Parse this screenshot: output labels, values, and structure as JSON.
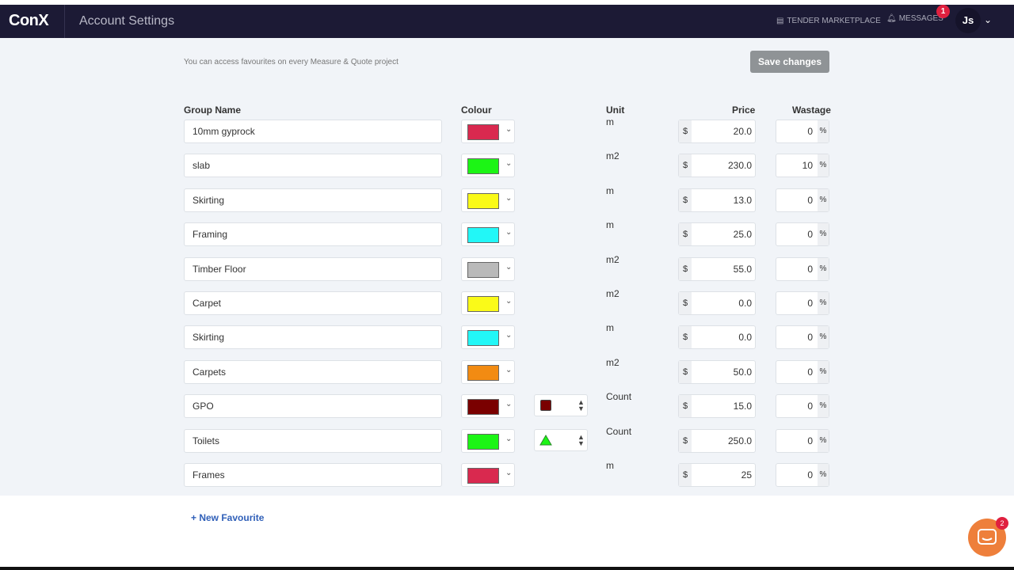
{
  "header": {
    "logo": "ConX",
    "title": "Account Settings",
    "tender": "TENDER MARKETPLACE",
    "messages": "MESSAGES",
    "messages_count": "1",
    "avatar": "Js"
  },
  "main": {
    "hint": "You can access favourites on every Measure & Quote project",
    "save_label": "Save changes",
    "columns": {
      "group": "Group Name",
      "colour": "Colour",
      "unit": "Unit",
      "price": "Price",
      "wastage": "Wastage"
    },
    "rows": [
      {
        "name": "10mm gyprock",
        "colour": "#d9294f",
        "unit": "m",
        "currency": "$",
        "price": "20.0",
        "wastage": "0",
        "pct": "%"
      },
      {
        "name": "slab",
        "colour": "#1cf515",
        "unit": "m2",
        "currency": "$",
        "price": "230.0",
        "wastage": "10",
        "pct": "%"
      },
      {
        "name": "Skirting",
        "colour": "#fafa18",
        "unit": "m",
        "currency": "$",
        "price": "13.0",
        "wastage": "0",
        "pct": "%"
      },
      {
        "name": "Framing",
        "colour": "#22f7f7",
        "unit": "m",
        "currency": "$",
        "price": "25.0",
        "wastage": "0",
        "pct": "%"
      },
      {
        "name": "Timber Floor",
        "colour": "#b9b9b9",
        "unit": "m2",
        "currency": "$",
        "price": "55.0",
        "wastage": "0",
        "pct": "%"
      },
      {
        "name": "Carpet",
        "colour": "#fafa18",
        "unit": "m2",
        "currency": "$",
        "price": "0.0",
        "wastage": "0",
        "pct": "%"
      },
      {
        "name": "Skirting",
        "colour": "#22f7f7",
        "unit": "m",
        "currency": "$",
        "price": "0.0",
        "wastage": "0",
        "pct": "%"
      },
      {
        "name": "Carpets",
        "colour": "#f28b12",
        "unit": "m2",
        "currency": "$",
        "price": "50.0",
        "wastage": "0",
        "pct": "%"
      },
      {
        "name": "GPO",
        "colour": "#7a0000",
        "unit": "Count",
        "shape": "square",
        "currency": "$",
        "price": "15.0",
        "wastage": "0",
        "pct": "%"
      },
      {
        "name": "Toilets",
        "colour": "#1cf515",
        "unit": "Count",
        "shape": "triangle",
        "currency": "$",
        "price": "250.0",
        "wastage": "0",
        "pct": "%"
      },
      {
        "name": "Frames",
        "colour": "#d9294f",
        "unit": "m",
        "currency": "$",
        "price": "25",
        "wastage": "0",
        "pct": "%"
      }
    ],
    "new_favourite": "+ New Favourite"
  },
  "chat": {
    "count": "2"
  }
}
